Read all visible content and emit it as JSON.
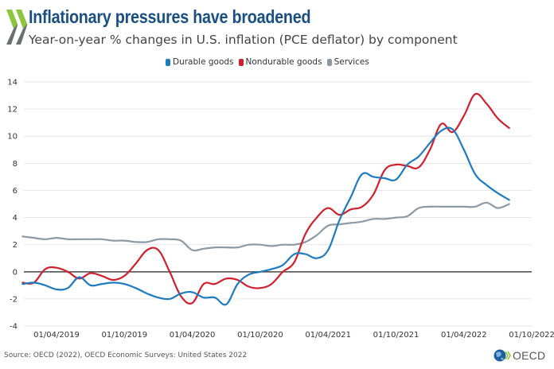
{
  "header": {
    "title": "Inflationary pressures have broadened",
    "subtitle": "Year-on-year % changes in U.S. inflation (PCE deflator) by component"
  },
  "footer": {
    "source": "Source: OECD (2022), OECD Economic Surveys: United States 2022",
    "logo_text": "OECD"
  },
  "colors": {
    "durable": "#1f7bbf",
    "nondurable": "#d0202e",
    "services": "#8c9aa6",
    "title": "#1a4f82",
    "zero_line": "#555555",
    "grid": "#e6e6e6"
  },
  "chart_data": {
    "type": "line",
    "title": "Inflationary pressures have broadened",
    "subtitle": "Year-on-year % changes in U.S. inflation (PCE deflator) by component",
    "xlabel": "",
    "ylabel": "",
    "x_frequency": "monthly",
    "x_start": "2019-01",
    "x_end": "2022-08",
    "x_ticks": [
      "01/04/2019",
      "01/10/2019",
      "01/04/2020",
      "01/10/2020",
      "01/04/2021",
      "01/10/2021",
      "01/04/2022",
      "01/10/2022"
    ],
    "y_ticks": [
      -4,
      -2,
      0,
      2,
      4,
      6,
      8,
      10,
      12,
      14
    ],
    "ylim": [
      -4,
      14
    ],
    "grid": true,
    "legend": "top-center",
    "series": [
      {
        "name": "Durable goods",
        "color": "#1f7bbf",
        "values": [
          -0.9,
          -0.8,
          -1.0,
          -1.3,
          -1.2,
          -0.4,
          -1.0,
          -0.9,
          -0.8,
          -0.9,
          -1.2,
          -1.6,
          -1.9,
          -2.0,
          -1.6,
          -1.5,
          -1.9,
          -1.9,
          -2.4,
          -0.9,
          -0.2,
          0.0,
          0.2,
          0.5,
          1.3,
          1.3,
          1.0,
          1.6,
          3.8,
          5.5,
          7.2,
          7.0,
          6.9,
          6.8,
          7.9,
          8.5,
          9.5,
          10.4,
          10.5,
          9.0,
          7.2,
          6.4,
          5.8,
          5.3
        ]
      },
      {
        "name": "Nondurable goods",
        "color": "#d0202e",
        "values": [
          -0.8,
          -0.8,
          0.2,
          0.3,
          0.0,
          -0.5,
          -0.1,
          -0.3,
          -0.6,
          -0.3,
          0.6,
          1.6,
          1.6,
          0.0,
          -1.8,
          -2.3,
          -0.9,
          -0.9,
          -0.5,
          -0.6,
          -1.1,
          -1.2,
          -0.9,
          0.0,
          0.7,
          2.8,
          4.0,
          4.7,
          4.2,
          4.6,
          4.8,
          5.7,
          7.5,
          7.9,
          7.8,
          7.7,
          9.0,
          10.9,
          10.3,
          11.5,
          13.1,
          12.4,
          11.3,
          10.6
        ]
      },
      {
        "name": "Services",
        "color": "#8c9aa6",
        "values": [
          2.6,
          2.5,
          2.4,
          2.5,
          2.4,
          2.4,
          2.4,
          2.4,
          2.3,
          2.3,
          2.2,
          2.2,
          2.4,
          2.4,
          2.3,
          1.6,
          1.7,
          1.8,
          1.8,
          1.8,
          2.0,
          2.0,
          1.9,
          2.0,
          2.0,
          2.2,
          2.7,
          3.4,
          3.5,
          3.6,
          3.7,
          3.9,
          3.9,
          4.0,
          4.1,
          4.7,
          4.8,
          4.8,
          4.8,
          4.8,
          4.8,
          5.1,
          4.7,
          5.0
        ]
      }
    ]
  }
}
